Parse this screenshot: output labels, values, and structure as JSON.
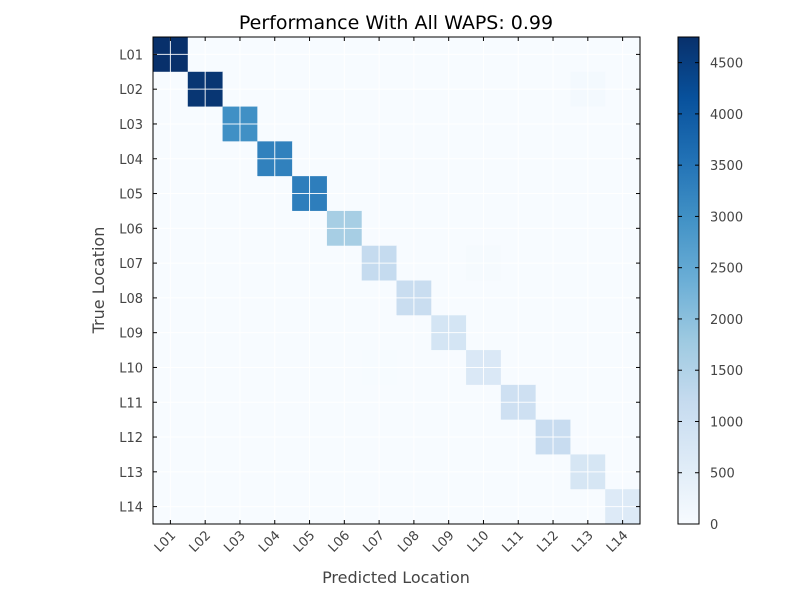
{
  "chart_data": {
    "type": "heatmap",
    "title": "Performance With All WAPS: 0.99",
    "xlabel": "Predicted Location",
    "ylabel": "True Location",
    "x_labels": [
      "L01",
      "L02",
      "L03",
      "L04",
      "L05",
      "L06",
      "L07",
      "L08",
      "L09",
      "L10",
      "L11",
      "L12",
      "L13",
      "L14"
    ],
    "y_labels": [
      "L01",
      "L02",
      "L03",
      "L04",
      "L05",
      "L06",
      "L07",
      "L08",
      "L09",
      "L10",
      "L11",
      "L12",
      "L13",
      "L14"
    ],
    "values": [
      [
        4750,
        0,
        0,
        0,
        0,
        0,
        0,
        0,
        0,
        0,
        0,
        0,
        0,
        0
      ],
      [
        0,
        4650,
        0,
        0,
        0,
        0,
        0,
        0,
        0,
        0,
        0,
        0,
        90,
        0
      ],
      [
        0,
        0,
        3000,
        0,
        0,
        0,
        0,
        0,
        0,
        0,
        0,
        0,
        0,
        0
      ],
      [
        0,
        0,
        0,
        3280,
        0,
        0,
        0,
        0,
        0,
        0,
        0,
        0,
        0,
        0
      ],
      [
        0,
        0,
        0,
        0,
        3330,
        0,
        0,
        0,
        0,
        0,
        0,
        0,
        0,
        0
      ],
      [
        0,
        0,
        0,
        0,
        0,
        1650,
        0,
        0,
        0,
        0,
        0,
        0,
        0,
        0
      ],
      [
        0,
        0,
        0,
        0,
        0,
        0,
        1200,
        0,
        0,
        40,
        0,
        0,
        0,
        0
      ],
      [
        0,
        0,
        0,
        0,
        0,
        0,
        0,
        1120,
        0,
        0,
        0,
        0,
        0,
        0
      ],
      [
        0,
        0,
        0,
        0,
        0,
        0,
        0,
        0,
        830,
        0,
        0,
        0,
        0,
        0
      ],
      [
        0,
        0,
        0,
        0,
        0,
        0,
        15,
        0,
        0,
        700,
        0,
        0,
        0,
        0
      ],
      [
        0,
        0,
        0,
        0,
        0,
        0,
        0,
        0,
        0,
        0,
        1000,
        0,
        0,
        0
      ],
      [
        0,
        0,
        0,
        0,
        0,
        0,
        0,
        0,
        0,
        0,
        0,
        1150,
        0,
        0
      ],
      [
        0,
        0,
        0,
        0,
        0,
        0,
        0,
        0,
        0,
        0,
        0,
        0,
        780,
        0
      ],
      [
        0,
        0,
        0,
        0,
        0,
        0,
        0,
        0,
        0,
        0,
        0,
        0,
        0,
        620
      ]
    ],
    "colorbar": {
      "range": [
        0,
        4750
      ],
      "ticks": [
        0,
        500,
        1000,
        1500,
        2000,
        2500,
        3000,
        3500,
        4000,
        4500
      ],
      "colormap": "Blues",
      "low_color": "#f7fbff",
      "high_color": "#08306b"
    },
    "grid": true,
    "legend": "colorbar-right"
  }
}
